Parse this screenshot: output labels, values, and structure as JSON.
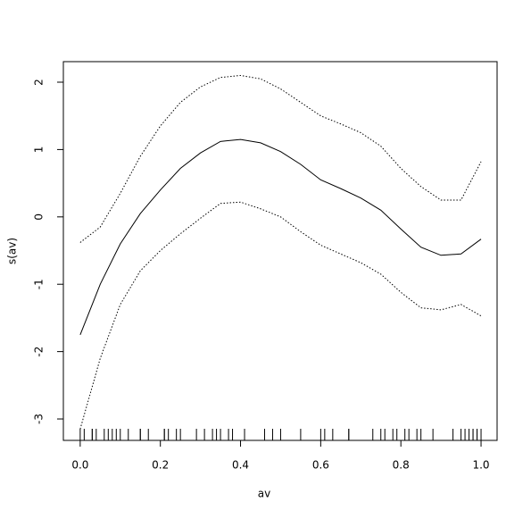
{
  "chart_data": {
    "type": "line",
    "xlabel": "av",
    "ylabel": "s(av)",
    "xlim": [
      -0.042,
      1.04
    ],
    "ylim": [
      -3.318,
      2.305
    ],
    "xticks": [
      {
        "value": 0,
        "label": "0.0"
      },
      {
        "value": 0.2,
        "label": "0.2"
      },
      {
        "value": 0.4,
        "label": "0.4"
      },
      {
        "value": 0.6,
        "label": "0.6"
      },
      {
        "value": 0.8,
        "label": "0.8"
      },
      {
        "value": 1,
        "label": "1.0"
      }
    ],
    "yticks": [
      -3,
      -2,
      -1,
      0,
      1,
      2
    ],
    "x": [
      0,
      0.05,
      0.1,
      0.15,
      0.2,
      0.25,
      0.3,
      0.35,
      0.4,
      0.45,
      0.5,
      0.55,
      0.6,
      0.65,
      0.7,
      0.75,
      0.8,
      0.85,
      0.9,
      0.95,
      1
    ],
    "series": [
      {
        "color": "#000000",
        "line_style": "solid",
        "values": [
          -1.75,
          -1.0,
          -0.4,
          0.05,
          0.4,
          0.72,
          0.95,
          1.12,
          1.15,
          1.1,
          0.97,
          0.78,
          0.55,
          0.42,
          0.28,
          0.1,
          -0.18,
          -0.45,
          -0.57,
          -0.55,
          -0.33
        ]
      },
      {
        "color": "#000000",
        "line_style": "dotted",
        "values": [
          -0.38,
          -0.15,
          0.35,
          0.9,
          1.35,
          1.7,
          1.93,
          2.07,
          2.1,
          2.05,
          1.9,
          1.7,
          1.5,
          1.38,
          1.25,
          1.05,
          0.72,
          0.45,
          0.25,
          0.25,
          0.82
        ]
      },
      {
        "color": "#000000",
        "line_style": "dotted",
        "values": [
          -3.15,
          -2.1,
          -1.3,
          -0.8,
          -0.5,
          -0.25,
          -0.02,
          0.2,
          0.22,
          0.12,
          0.0,
          -0.22,
          -0.42,
          -0.55,
          -0.68,
          -0.85,
          -1.12,
          -1.35,
          -1.38,
          -1.3,
          -1.47
        ]
      }
    ],
    "rug": [
      0.0,
      0.01,
      0.03,
      0.03,
      0.04,
      0.06,
      0.07,
      0.08,
      0.09,
      0.1,
      0.12,
      0.15,
      0.15,
      0.17,
      0.21,
      0.21,
      0.22,
      0.24,
      0.25,
      0.29,
      0.31,
      0.33,
      0.34,
      0.35,
      0.37,
      0.38,
      0.41,
      0.46,
      0.48,
      0.5,
      0.55,
      0.6,
      0.61,
      0.63,
      0.67,
      0.67,
      0.73,
      0.75,
      0.76,
      0.78,
      0.79,
      0.81,
      0.82,
      0.84,
      0.85,
      0.88,
      0.93,
      0.95,
      0.96,
      0.97,
      0.98,
      0.98,
      0.99,
      0.99,
      1.0
    ]
  }
}
